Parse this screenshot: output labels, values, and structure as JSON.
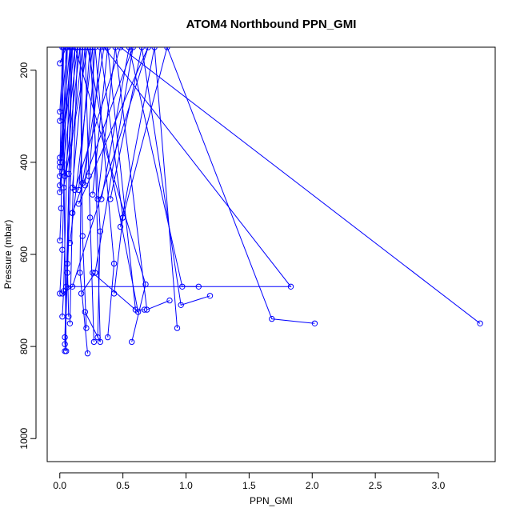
{
  "chart_data": {
    "type": "scatter",
    "title": "ATOM4 Northbound PPN_GMI",
    "xlabel": "PPN_GMI",
    "ylabel": "Pressure (mbar)",
    "xlim": [
      -0.1,
      3.45
    ],
    "ylim": [
      1050,
      150
    ],
    "y_reversed": true,
    "x_ticks": [
      0.0,
      0.5,
      1.0,
      1.5,
      2.0,
      2.5,
      3.0
    ],
    "x_tick_labels": [
      "0.0",
      "0.5",
      "1.0",
      "1.5",
      "2.0",
      "2.5",
      "3.0"
    ],
    "y_ticks": [
      200,
      400,
      600,
      800,
      1000
    ],
    "y_tick_labels": [
      "200",
      "400",
      "600",
      "800",
      "1000"
    ],
    "grid": false,
    "series_color": "#0000ff",
    "series": [
      {
        "style": "line-with-open-circles",
        "segments": [
          [
            [
              0.0,
              185
            ],
            [
              0.05,
              150
            ],
            [
              0.02,
              400
            ],
            [
              0.0,
              450
            ]
          ],
          [
            [
              0.0,
              290
            ],
            [
              0.03,
              150
            ],
            [
              0.01,
              500
            ],
            [
              0.0,
              570
            ]
          ],
          [
            [
              0.0,
              310
            ],
            [
              0.06,
              150
            ],
            [
              0.02,
              590
            ],
            [
              0.0,
              685
            ]
          ],
          [
            [
              0.0,
              390
            ],
            [
              0.08,
              150
            ],
            [
              0.03,
              680
            ],
            [
              0.02,
              735
            ]
          ],
          [
            [
              0.0,
              400
            ],
            [
              0.1,
              150
            ],
            [
              0.04,
              780
            ],
            [
              0.04,
              795
            ]
          ],
          [
            [
              0.0,
              410
            ],
            [
              0.12,
              150
            ],
            [
              0.04,
              810
            ]
          ],
          [
            [
              0.0,
              430
            ],
            [
              0.02,
              150
            ],
            [
              0.05,
              810
            ]
          ],
          [
            [
              0.0,
              465
            ],
            [
              0.09,
              150
            ],
            [
              0.06,
              620
            ],
            [
              0.07,
              735
            ]
          ],
          [
            [
              0.02,
              420
            ],
            [
              0.14,
              150
            ],
            [
              0.1,
              510
            ],
            [
              0.08,
              750
            ]
          ],
          [
            [
              0.04,
              430
            ],
            [
              0.16,
              150
            ],
            [
              0.18,
              560
            ],
            [
              0.21,
              760
            ]
          ],
          [
            [
              0.07,
              425
            ],
            [
              0.18,
              150
            ],
            [
              0.16,
              640
            ],
            [
              0.22,
              815
            ]
          ],
          [
            [
              0.1,
              455
            ],
            [
              0.2,
              150
            ],
            [
              0.24,
              520
            ],
            [
              0.27,
              790
            ]
          ],
          [
            [
              0.15,
              460
            ],
            [
              0.24,
              150
            ],
            [
              0.32,
              550
            ],
            [
              0.3,
              780
            ]
          ],
          [
            [
              0.2,
              450
            ],
            [
              0.28,
              150
            ],
            [
              0.43,
              620
            ],
            [
              0.38,
              780
            ]
          ],
          [
            [
              0.23,
              430
            ],
            [
              0.32,
              150
            ],
            [
              0.5,
              520
            ],
            [
              0.43,
              685
            ]
          ],
          [
            [
              0.26,
              470
            ],
            [
              0.38,
              150
            ],
            [
              0.6,
              720
            ],
            [
              0.67,
              720
            ]
          ],
          [
            [
              0.3,
              480
            ],
            [
              0.44,
              150
            ],
            [
              0.69,
              720
            ],
            [
              0.87,
              700
            ]
          ],
          [
            [
              0.33,
              480
            ],
            [
              0.55,
              150
            ],
            [
              0.97,
              670
            ],
            [
              1.1,
              670
            ]
          ],
          [
            [
              0.4,
              480
            ],
            [
              0.65,
              150
            ],
            [
              0.96,
              710
            ],
            [
              1.19,
              690
            ]
          ],
          [
            [
              0.48,
              540
            ],
            [
              0.75,
              150
            ],
            [
              0.93,
              760
            ]
          ],
          [
            [
              0.5,
              520
            ],
            [
              0.85,
              150
            ],
            [
              1.68,
              740
            ],
            [
              2.02,
              750
            ]
          ],
          [
            [
              0.12,
              460
            ],
            [
              0.48,
              150
            ],
            [
              3.33,
              750
            ]
          ],
          [
            [
              0.18,
              445
            ],
            [
              0.35,
              150
            ],
            [
              1.83,
              670
            ],
            [
              0.05,
              670
            ]
          ],
          [
            [
              0.06,
              640
            ],
            [
              0.12,
              150
            ],
            [
              0.68,
              665
            ],
            [
              0.57,
              790
            ]
          ],
          [
            [
              0.03,
              455
            ],
            [
              0.22,
              150
            ],
            [
              0.62,
              725
            ],
            [
              0.26,
              640
            ]
          ],
          [
            [
              0.08,
              575
            ],
            [
              0.26,
              150
            ],
            [
              0.32,
              790
            ],
            [
              0.2,
              725
            ]
          ],
          [
            [
              0.1,
              510
            ],
            [
              0.58,
              150
            ],
            [
              0.28,
              640
            ],
            [
              0.17,
              685
            ]
          ],
          [
            [
              0.15,
              490
            ],
            [
              0.7,
              150
            ],
            [
              0.1,
              670
            ],
            [
              0.02,
              685
            ]
          ]
        ]
      }
    ]
  }
}
